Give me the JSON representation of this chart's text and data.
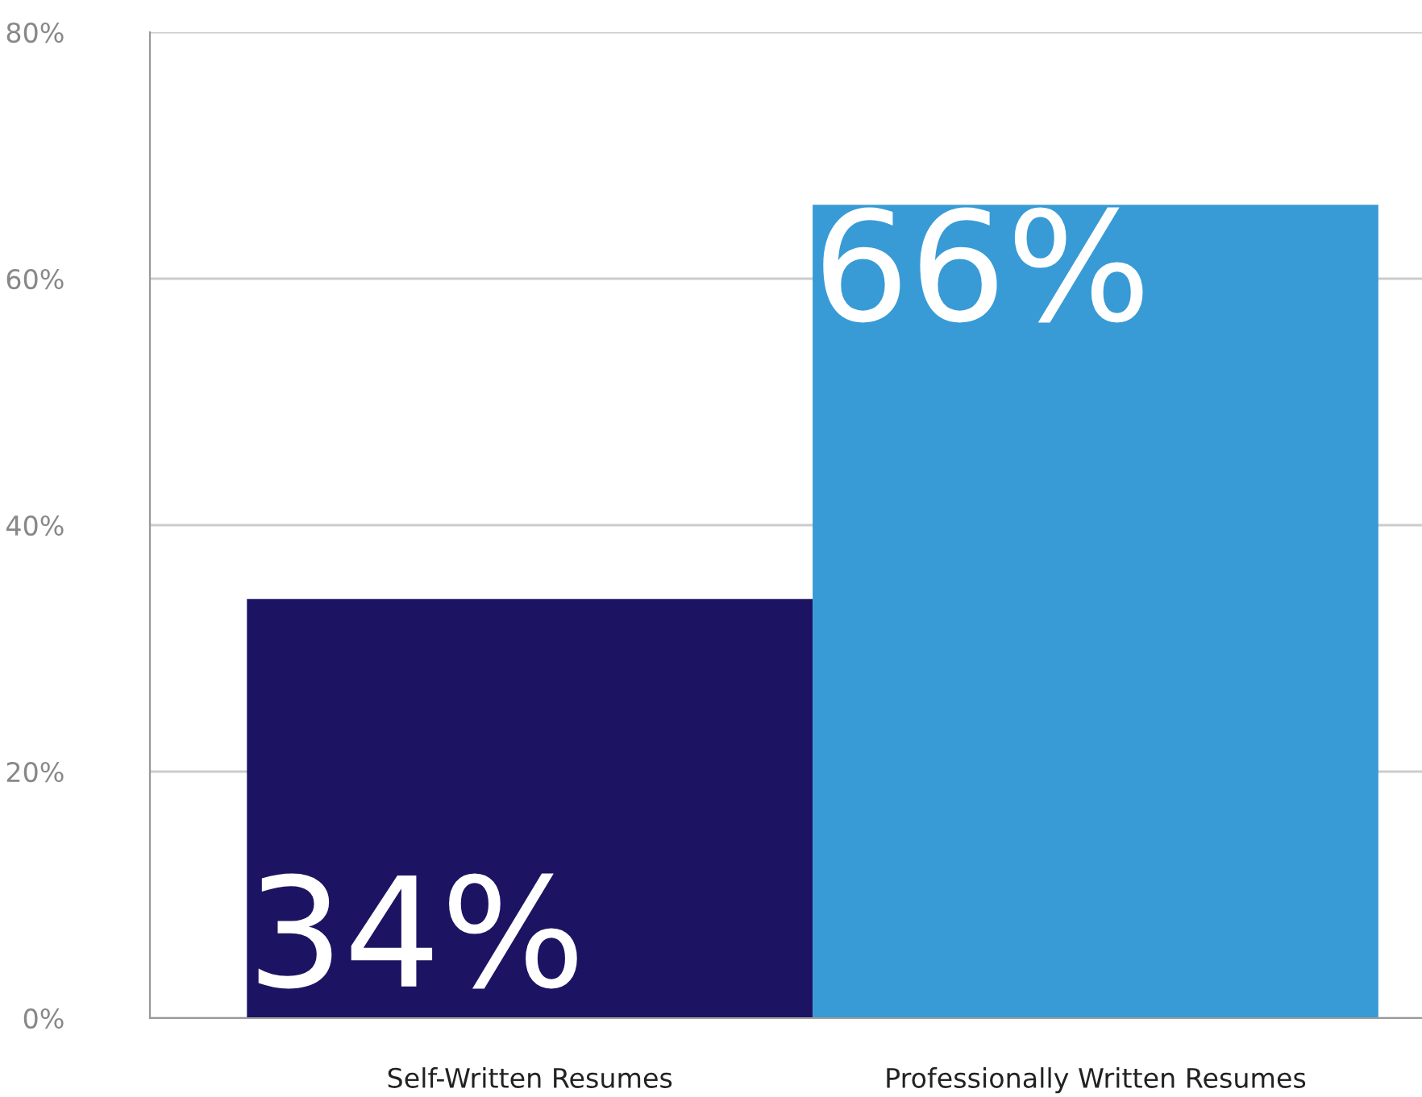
{
  "chart_data": {
    "type": "bar",
    "categories": [
      "Self-Written Resumes",
      "Professionally Written Resumes"
    ],
    "values": [
      34,
      66
    ],
    "colors": [
      "#1c1463",
      "#389bd6"
    ],
    "value_labels": [
      "34%",
      "66%"
    ],
    "ylim": [
      0,
      80
    ],
    "yticks": [
      {
        "value": 0,
        "label": "0%"
      },
      {
        "value": 20,
        "label": "20%"
      },
      {
        "value": 40,
        "label": "40%"
      },
      {
        "value": 60,
        "label": "60%"
      },
      {
        "value": 80,
        "label": "80%"
      }
    ],
    "grid": "y"
  }
}
